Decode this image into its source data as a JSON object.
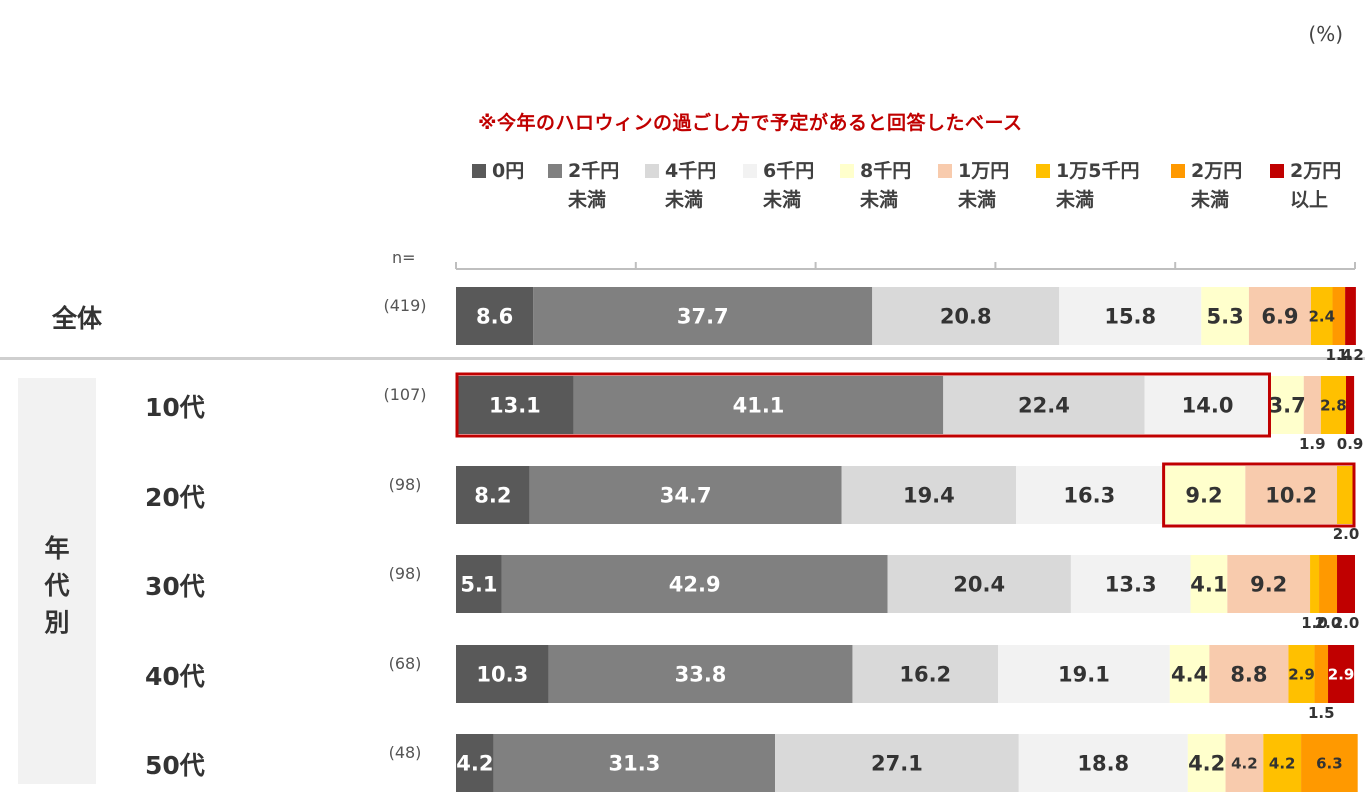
{
  "unit_label": "(%)",
  "subtitle": "※今年のハロウィンの過ごし方で予定があると回答したベース",
  "n_prefix": "n=",
  "group_label": [
    "年",
    "代",
    "別"
  ],
  "legend": [
    {
      "line1": "0円",
      "line2": "",
      "color": "#595959"
    },
    {
      "line1": "2千円",
      "line2": "未満",
      "color": "#808080"
    },
    {
      "line1": "4千円",
      "line2": "未満",
      "color": "#d9d9d9"
    },
    {
      "line1": "6千円",
      "line2": "未満",
      "color": "#f2f2f2"
    },
    {
      "line1": "8千円",
      "line2": "未満",
      "color": "#ffffcc"
    },
    {
      "line1": "1万円",
      "line2": "未満",
      "color": "#f8cbad"
    },
    {
      "line1": "1万5千円",
      "line2": "未満",
      "color": "#ffc000"
    },
    {
      "line1": "2万円",
      "line2": "未満",
      "color": "#ff9900"
    },
    {
      "line1": "2万円",
      "line2": "以上",
      "color": "#c00000"
    }
  ],
  "rows": [
    {
      "label": "全体",
      "n": "(419)"
    },
    {
      "label": "10代",
      "n": "(107)"
    },
    {
      "label": "20代",
      "n": "(98)"
    },
    {
      "label": "30代",
      "n": "(98)"
    },
    {
      "label": "40代",
      "n": "(68)"
    },
    {
      "label": "50代",
      "n": "(48)"
    }
  ],
  "chart_data": {
    "type": "bar",
    "orientation": "horizontal",
    "stacked": true,
    "xlim": [
      0,
      100
    ],
    "categories": [
      "全体",
      "10代",
      "20代",
      "30代",
      "40代",
      "50代"
    ],
    "series": [
      {
        "name": "0円",
        "values": [
          8.6,
          13.1,
          8.2,
          5.1,
          10.3,
          4.2
        ]
      },
      {
        "name": "2千円未満",
        "values": [
          37.7,
          41.1,
          34.7,
          42.9,
          33.8,
          31.3
        ]
      },
      {
        "name": "4千円未満",
        "values": [
          20.8,
          22.4,
          19.4,
          20.4,
          16.2,
          27.1
        ]
      },
      {
        "name": "6千円未満",
        "values": [
          15.8,
          14.0,
          16.3,
          13.3,
          19.1,
          18.8
        ]
      },
      {
        "name": "8千円未満",
        "values": [
          5.3,
          3.7,
          9.2,
          4.1,
          4.4,
          4.2
        ]
      },
      {
        "name": "1万円未満",
        "values": [
          6.9,
          1.9,
          10.2,
          9.2,
          8.8,
          4.2
        ]
      },
      {
        "name": "1万5千円未満",
        "values": [
          2.4,
          2.8,
          2.0,
          1.0,
          2.9,
          4.2
        ]
      },
      {
        "name": "2万円未満",
        "values": [
          1.4,
          0.0,
          0.0,
          2.0,
          1.5,
          6.3
        ]
      },
      {
        "name": "2万円以上",
        "values": [
          1.2,
          0.9,
          0.0,
          2.0,
          2.9,
          0.0
        ]
      }
    ],
    "value_labels": [
      [
        "8.6",
        "37.7",
        "20.8",
        "15.8",
        "5.3",
        "6.9",
        "2.4",
        "1.4",
        "1.2"
      ],
      [
        "13.1",
        "41.1",
        "22.4",
        "14.0",
        "3.7",
        "1.9",
        "2.8",
        "",
        "0.9"
      ],
      [
        "8.2",
        "34.7",
        "19.4",
        "16.3",
        "9.2",
        "10.2",
        "2.0",
        "",
        ""
      ],
      [
        "5.1",
        "42.9",
        "20.4",
        "13.3",
        "4.1",
        "9.2",
        "1.0",
        "2.0",
        "2.0"
      ],
      [
        "10.3",
        "33.8",
        "16.2",
        "19.1",
        "4.4",
        "8.8",
        "2.9",
        "1.5",
        "2.9"
      ],
      [
        "4.2",
        "31.3",
        "27.1",
        "18.8",
        "4.2",
        "4.2",
        "4.2",
        "6.3",
        ""
      ]
    ],
    "highlights": [
      {
        "row": "10代",
        "from_series": "0円",
        "to_series": "6千円未満",
        "color": "#c00000"
      },
      {
        "row": "20代",
        "from_series": "8千円未満",
        "to_series": "1万5千円未満",
        "color": "#c00000"
      }
    ]
  }
}
